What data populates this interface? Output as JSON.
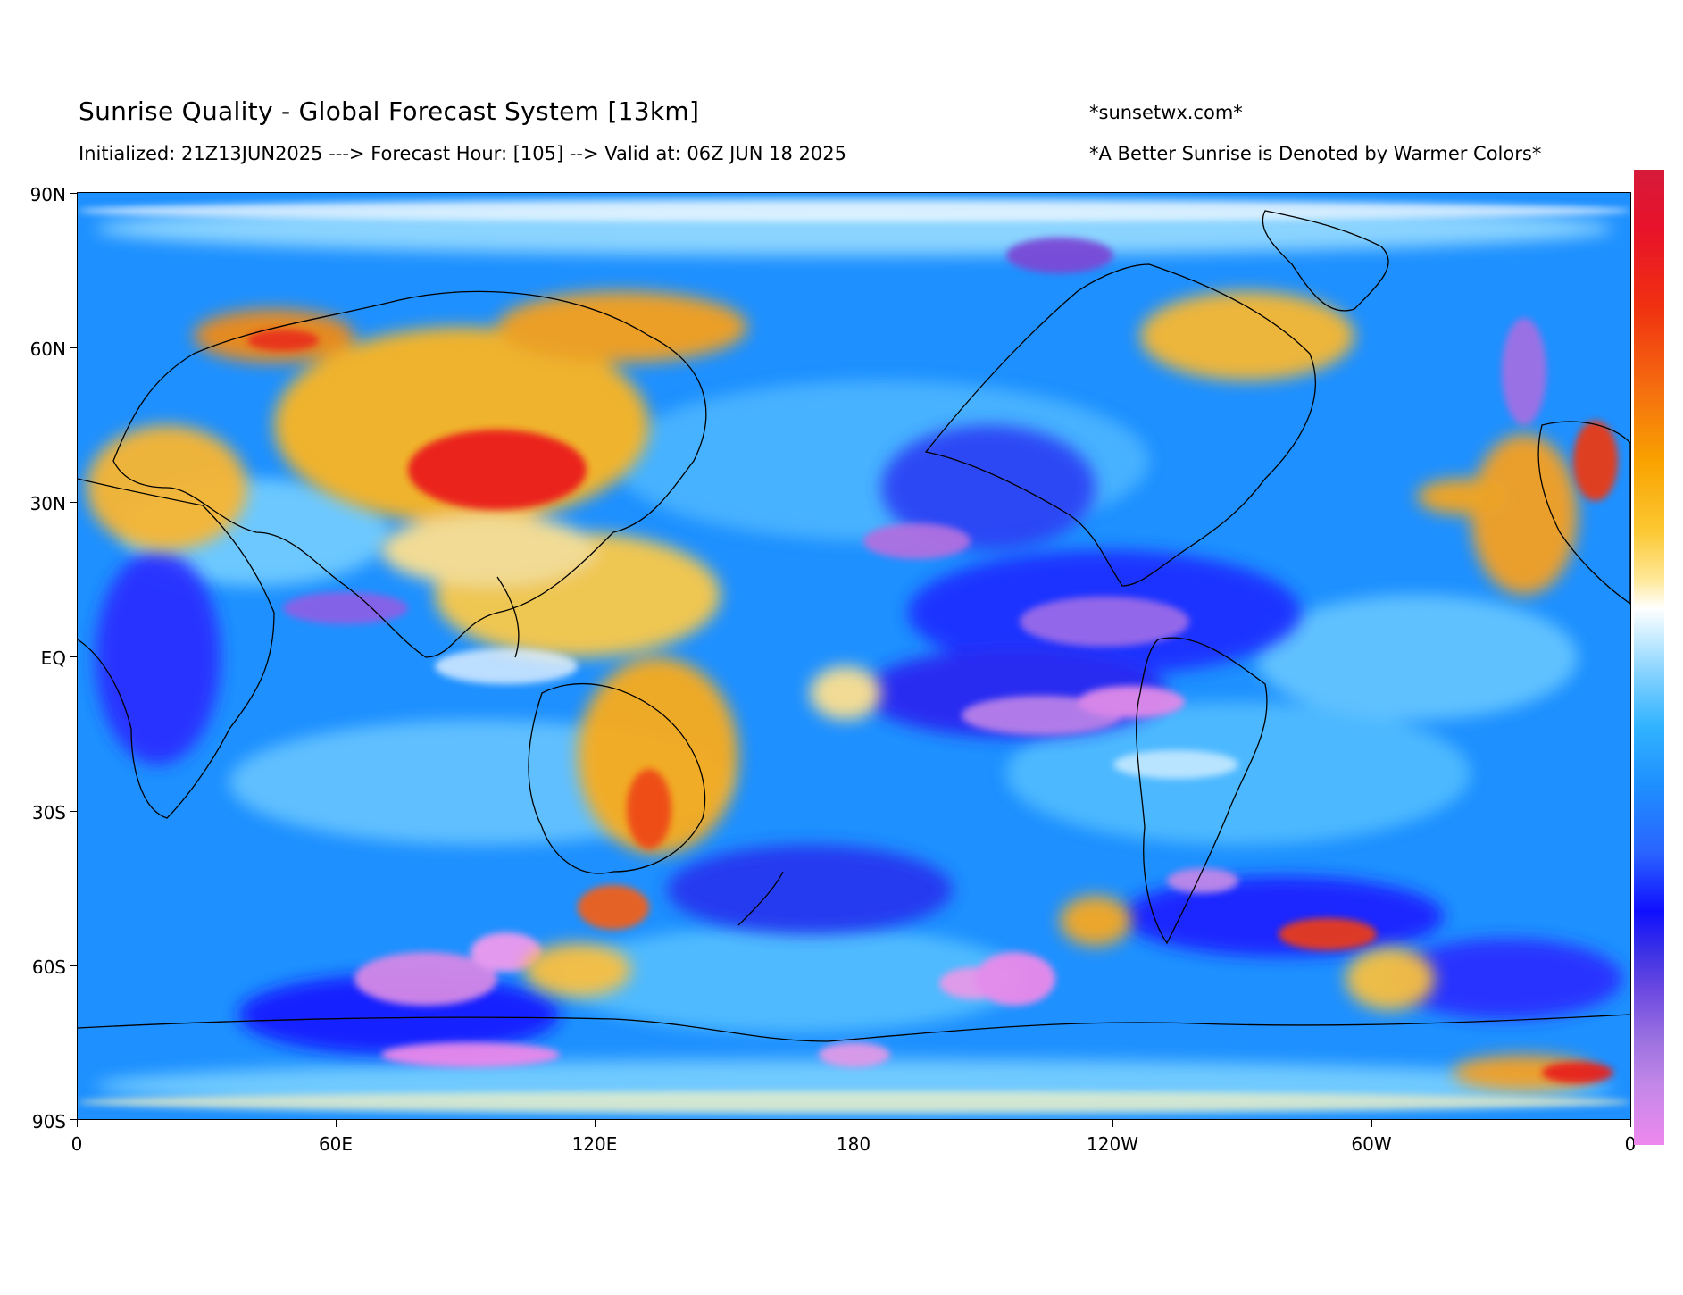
{
  "header": {
    "title": "Sunrise Quality - Global Forecast System [13km]",
    "subtitle": "Initialized: 21Z13JUN2025 ---> Forecast Hour: [105] --> Valid at: 06Z JUN 18 2025",
    "site": "*sunsetwx.com*",
    "note": "*A Better Sunrise is Denoted by Warmer Colors*"
  },
  "map": {
    "projection": "equirectangular",
    "lat_range": [
      -90,
      90
    ],
    "lon_range": [
      0,
      360
    ],
    "lat_ticks": [
      "90N",
      "60N",
      "30N",
      "EQ",
      "30S",
      "60S",
      "90S"
    ],
    "lon_ticks": [
      "0",
      "60E",
      "120E",
      "180",
      "120W",
      "60W",
      "0"
    ],
    "background_color": "#1e90ff"
  },
  "colorbar": {
    "orientation": "vertical",
    "low_color": "#ee88ee",
    "mid_color": "#ffffff",
    "high_color": "#d61a3a"
  }
}
